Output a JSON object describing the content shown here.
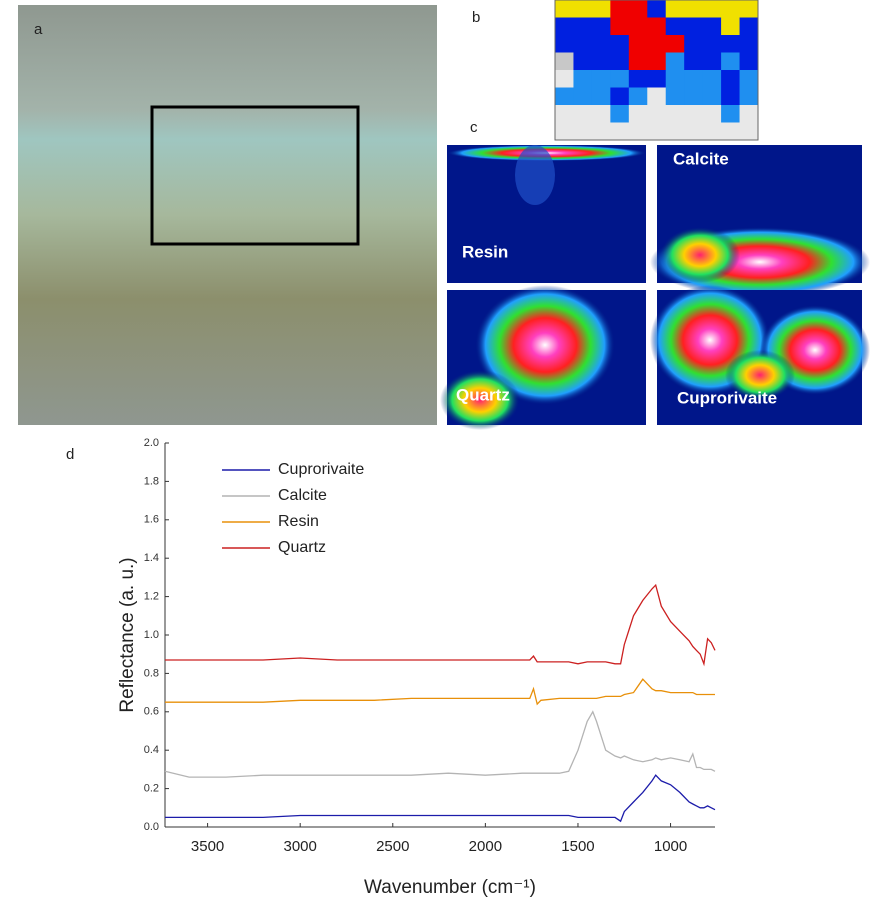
{
  "panel_labels": [
    "a",
    "b",
    "c",
    "d"
  ],
  "maps": [
    "Resin",
    "Calcite",
    "Quartz",
    "Cuprorivaite"
  ],
  "chart_data": {
    "type": "line",
    "xlabel": "Wavenumber (cm⁻¹)",
    "ylabel": "Reflectance (a. u.)",
    "xlim": [
      3730,
      760
    ],
    "ylim": [
      0,
      2
    ],
    "xticks": [
      3500,
      3000,
      2500,
      2000,
      1500,
      1000
    ],
    "yticks": [
      {
        "value": 0,
        "label": "0.0"
      },
      0.2,
      0.4,
      0.6,
      0.8,
      {
        "value": 1,
        "label": "1.0"
      },
      1.2,
      1.4,
      1.6,
      1.8,
      {
        "value": 2,
        "label": "2.0"
      }
    ],
    "legend": "upper left",
    "x": [
      3730,
      3600,
      3400,
      3200,
      3000,
      2800,
      2600,
      2400,
      2200,
      2000,
      1800,
      1760,
      1740,
      1720,
      1700,
      1600,
      1550,
      1500,
      1450,
      1420,
      1400,
      1350,
      1300,
      1270,
      1250,
      1200,
      1150,
      1100,
      1080,
      1050,
      1000,
      950,
      900,
      880,
      860,
      840,
      820,
      800,
      780,
      760
    ],
    "series": [
      {
        "name": "Cuprorivaite",
        "color": "#1c1caa",
        "values": [
          0.05,
          0.05,
          0.05,
          0.05,
          0.06,
          0.06,
          0.06,
          0.06,
          0.06,
          0.06,
          0.06,
          0.06,
          0.06,
          0.06,
          0.06,
          0.06,
          0.06,
          0.05,
          0.05,
          0.05,
          0.05,
          0.05,
          0.05,
          0.03,
          0.08,
          0.13,
          0.18,
          0.24,
          0.27,
          0.24,
          0.22,
          0.18,
          0.13,
          0.12,
          0.11,
          0.1,
          0.1,
          0.11,
          0.1,
          0.09
        ]
      },
      {
        "name": "Calcite",
        "color": "#b4b4b4",
        "values": [
          0.29,
          0.26,
          0.26,
          0.27,
          0.27,
          0.27,
          0.27,
          0.27,
          0.28,
          0.27,
          0.28,
          0.28,
          0.28,
          0.28,
          0.28,
          0.28,
          0.29,
          0.4,
          0.55,
          0.6,
          0.55,
          0.4,
          0.37,
          0.36,
          0.37,
          0.35,
          0.34,
          0.35,
          0.36,
          0.35,
          0.36,
          0.35,
          0.34,
          0.38,
          0.31,
          0.31,
          0.3,
          0.3,
          0.3,
          0.29
        ]
      },
      {
        "name": "Resin",
        "color": "#e8900a",
        "values": [
          0.65,
          0.65,
          0.65,
          0.65,
          0.66,
          0.66,
          0.66,
          0.67,
          0.67,
          0.67,
          0.67,
          0.67,
          0.72,
          0.64,
          0.66,
          0.67,
          0.67,
          0.67,
          0.67,
          0.67,
          0.67,
          0.68,
          0.68,
          0.68,
          0.69,
          0.7,
          0.77,
          0.72,
          0.71,
          0.71,
          0.7,
          0.7,
          0.7,
          0.7,
          0.69,
          0.69,
          0.69,
          0.69,
          0.69,
          0.69
        ]
      },
      {
        "name": "Quartz",
        "color": "#cc2020",
        "values": [
          0.87,
          0.87,
          0.87,
          0.87,
          0.88,
          0.87,
          0.87,
          0.87,
          0.87,
          0.87,
          0.87,
          0.87,
          0.89,
          0.86,
          0.86,
          0.86,
          0.86,
          0.85,
          0.86,
          0.86,
          0.86,
          0.86,
          0.85,
          0.85,
          0.95,
          1.1,
          1.18,
          1.24,
          1.26,
          1.15,
          1.07,
          1.02,
          0.97,
          0.94,
          0.92,
          0.9,
          0.85,
          0.98,
          0.96,
          0.92
        ]
      }
    ]
  }
}
